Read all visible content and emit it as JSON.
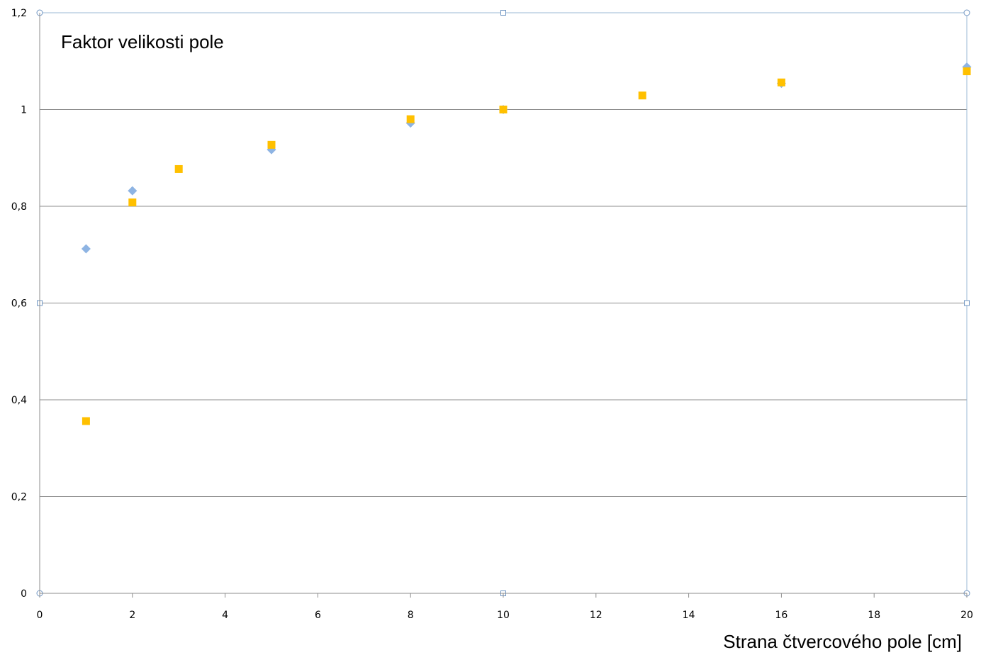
{
  "chart_data": {
    "type": "scatter",
    "title": "Faktor velikosti pole",
    "xlabel": "Strana čtvercového pole [cm]",
    "ylabel": "",
    "xlim": [
      0,
      20
    ],
    "ylim": [
      0,
      1.2
    ],
    "x_ticks": [
      "0",
      "2",
      "4",
      "6",
      "8",
      "10",
      "12",
      "14",
      "16",
      "18",
      "20"
    ],
    "y_ticks": [
      "0",
      "0,2",
      "0,4",
      "0,6",
      "0,8",
      "1",
      "1,2"
    ],
    "grid": "horizontal",
    "legend": "none",
    "series": [
      {
        "marker": "diamond",
        "color": "#8eb4e3",
        "points": [
          {
            "x": 1,
            "y": 0.712
          },
          {
            "x": 2,
            "y": 0.832
          },
          {
            "x": 5,
            "y": 0.917
          },
          {
            "x": 8,
            "y": 0.972
          },
          {
            "x": 10,
            "y": 1.0
          },
          {
            "x": 16,
            "y": 1.054
          },
          {
            "x": 20,
            "y": 1.088
          }
        ]
      },
      {
        "marker": "square",
        "color": "#ffc000",
        "points": [
          {
            "x": 1,
            "y": 0.356
          },
          {
            "x": 2,
            "y": 0.808
          },
          {
            "x": 3,
            "y": 0.877
          },
          {
            "x": 5,
            "y": 0.927
          },
          {
            "x": 8,
            "y": 0.98
          },
          {
            "x": 10,
            "y": 1.0
          },
          {
            "x": 13,
            "y": 1.029
          },
          {
            "x": 16,
            "y": 1.056
          },
          {
            "x": 20,
            "y": 1.079
          }
        ]
      }
    ]
  }
}
